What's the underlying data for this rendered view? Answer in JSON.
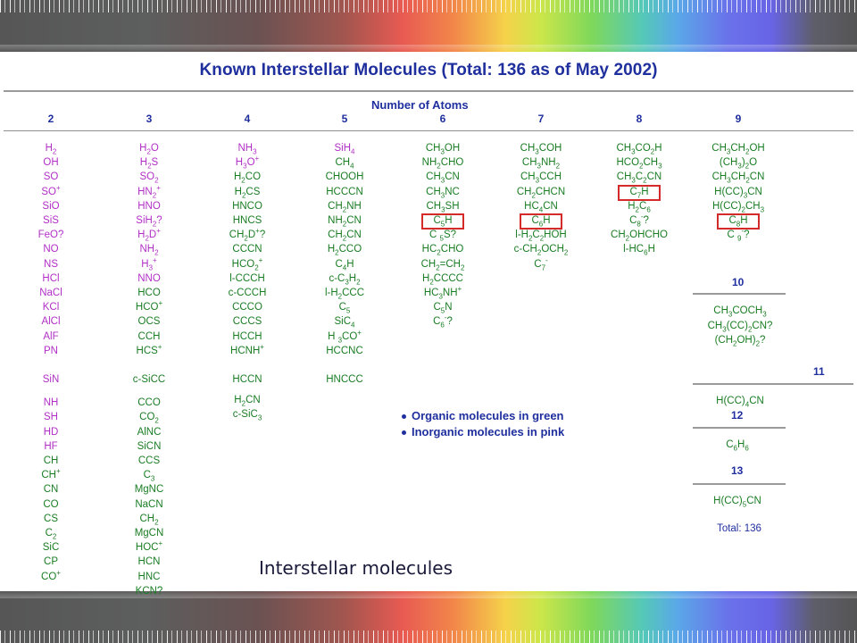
{
  "title": "Known Interstellar Molecules (Total: 136 as of May 2002)",
  "number_of_atoms_label": "Number of Atoms",
  "column_numbers": [
    "2",
    "3",
    "4",
    "5",
    "6",
    "7",
    "8",
    "9"
  ],
  "extra_headers": {
    "ten": "10",
    "eleven": "11",
    "twelve": "12",
    "thirteen": "13"
  },
  "legend": {
    "organic": "Organic molecules in green",
    "inorganic": "Inorganic molecules in pink"
  },
  "colors": {
    "organic": "#1a7d24",
    "inorganic": "#b12fc6",
    "header": "#1f2f9e",
    "highlight_box": "#d52a2a"
  },
  "total_label": "Total: 136",
  "caption": "Interstellar molecules",
  "columns": [
    {
      "atoms": "2",
      "molecules": [
        {
          "f": "H_2",
          "c": "inorg"
        },
        {
          "f": "OH",
          "c": "inorg"
        },
        {
          "f": "SO",
          "c": "inorg"
        },
        {
          "f": "SO^+",
          "c": "inorg"
        },
        {
          "f": "SiO",
          "c": "inorg"
        },
        {
          "f": "SiS",
          "c": "inorg"
        },
        {
          "f": "FeO?",
          "c": "inorg"
        },
        {
          "f": "NO",
          "c": "inorg"
        },
        {
          "f": "NS",
          "c": "inorg"
        },
        {
          "f": "HCl",
          "c": "inorg"
        },
        {
          "f": "NaCl",
          "c": "inorg"
        },
        {
          "f": "KCl",
          "c": "inorg"
        },
        {
          "f": "AlCl",
          "c": "inorg"
        },
        {
          "f": "AlF",
          "c": "inorg"
        },
        {
          "f": "PN",
          "c": "inorg"
        },
        {
          "f": "SiN",
          "c": "inorg"
        },
        {
          "f": "NH",
          "c": "inorg"
        },
        {
          "f": "SH",
          "c": "inorg"
        },
        {
          "f": "HD",
          "c": "inorg"
        },
        {
          "f": "HF",
          "c": "inorg"
        },
        {
          "f": "CH",
          "c": "org"
        },
        {
          "f": "CH^+",
          "c": "org"
        },
        {
          "f": "CN",
          "c": "org"
        },
        {
          "f": "CO",
          "c": "org"
        },
        {
          "f": "CS",
          "c": "org"
        },
        {
          "f": "C_2",
          "c": "org"
        },
        {
          "f": "SiC",
          "c": "org"
        },
        {
          "f": "CP",
          "c": "org"
        },
        {
          "f": "CO^+",
          "c": "org"
        }
      ]
    },
    {
      "atoms": "3",
      "molecules": [
        {
          "f": "H_2O",
          "c": "inorg"
        },
        {
          "f": "H_2S",
          "c": "inorg"
        },
        {
          "f": "SO_2",
          "c": "inorg"
        },
        {
          "f": "HN_2^+",
          "c": "inorg"
        },
        {
          "f": "HNO",
          "c": "inorg"
        },
        {
          "f": "SiH_2?",
          "c": "inorg"
        },
        {
          "f": "H_2D^+",
          "c": "inorg"
        },
        {
          "f": "NH_2",
          "c": "inorg"
        },
        {
          "f": "H_3^+",
          "c": "inorg"
        },
        {
          "f": "NNO",
          "c": "inorg"
        },
        {
          "f": "HCO",
          "c": "org"
        },
        {
          "f": "HCO^+",
          "c": "org"
        },
        {
          "f": "OCS",
          "c": "org"
        },
        {
          "f": "CCH",
          "c": "org"
        },
        {
          "f": "HCS^+",
          "c": "org"
        },
        {
          "f": "c-SiCC",
          "c": "org"
        },
        {
          "f": "CCO",
          "c": "org"
        },
        {
          "f": "CO_2",
          "c": "org"
        },
        {
          "f": "AlNC",
          "c": "org"
        },
        {
          "f": "SiCN",
          "c": "org"
        },
        {
          "f": "CCS",
          "c": "org"
        },
        {
          "f": "C_3",
          "c": "org"
        },
        {
          "f": "MgNC",
          "c": "org"
        },
        {
          "f": "NaCN",
          "c": "org"
        },
        {
          "f": "CH_2",
          "c": "org"
        },
        {
          "f": "MgCN",
          "c": "org"
        },
        {
          "f": "HOC^+",
          "c": "org"
        },
        {
          "f": "HCN",
          "c": "org"
        },
        {
          "f": "HNC",
          "c": "org"
        },
        {
          "f": "KCN?",
          "c": "org"
        }
      ]
    },
    {
      "atoms": "4",
      "molecules": [
        {
          "f": "NH_3",
          "c": "inorg"
        },
        {
          "f": "H_3O^+",
          "c": "inorg"
        },
        {
          "f": "H_2CO",
          "c": "org"
        },
        {
          "f": "H_2CS",
          "c": "org"
        },
        {
          "f": "HNCO",
          "c": "org"
        },
        {
          "f": "HNCS",
          "c": "org"
        },
        {
          "f": "CH_2D^+?",
          "c": "org"
        },
        {
          "f": "CCCN",
          "c": "org"
        },
        {
          "f": "HCO_2^+",
          "c": "org"
        },
        {
          "f": "l-CCCH",
          "c": "org"
        },
        {
          "f": "c-CCCH",
          "c": "org"
        },
        {
          "f": "CCCO",
          "c": "org"
        },
        {
          "f": "CCCS",
          "c": "org"
        },
        {
          "f": "HCCH",
          "c": "org"
        },
        {
          "f": "HCNH^+",
          "c": "org"
        },
        {
          "f": "HCCN",
          "c": "org"
        },
        {
          "f": "H_2CN",
          "c": "org"
        },
        {
          "f": "c-SiC_3",
          "c": "org"
        }
      ]
    },
    {
      "atoms": "5",
      "molecules": [
        {
          "f": "SiH_4",
          "c": "inorg"
        },
        {
          "f": "CH_4",
          "c": "org"
        },
        {
          "f": "CHOOH",
          "c": "org"
        },
        {
          "f": "HCCCN",
          "c": "org"
        },
        {
          "f": "CH_2NH",
          "c": "org"
        },
        {
          "f": "NH_2CN",
          "c": "org"
        },
        {
          "f": "CH_2CN",
          "c": "org"
        },
        {
          "f": "H_2CCO",
          "c": "org"
        },
        {
          "f": "C_4H",
          "c": "org"
        },
        {
          "f": "c-C_3H_2",
          "c": "org"
        },
        {
          "f": "l-H_2CCC",
          "c": "org"
        },
        {
          "f": "C_5",
          "c": "org"
        },
        {
          "f": "SiC_4",
          "c": "org"
        },
        {
          "f": "H _3CO^+",
          "c": "org"
        },
        {
          "f": "HCCNC",
          "c": "org"
        },
        {
          "f": "HNCCC",
          "c": "org"
        }
      ]
    },
    {
      "atoms": "6",
      "molecules": [
        {
          "f": "CH_3OH",
          "c": "org"
        },
        {
          "f": "NH_2CHO",
          "c": "org"
        },
        {
          "f": "CH_3CN",
          "c": "org"
        },
        {
          "f": "CH_3NC",
          "c": "org"
        },
        {
          "f": "CH_3SH",
          "c": "org"
        },
        {
          "f": "C_5H",
          "c": "org"
        },
        {
          "f": "C _5S?",
          "c": "org"
        },
        {
          "f": "HC_2CHO",
          "c": "org"
        },
        {
          "f": "CH_2=CH_2",
          "c": "org"
        },
        {
          "f": "H_2CCCC",
          "c": "org"
        },
        {
          "f": "HC_3NH^+",
          "c": "org"
        },
        {
          "f": "C_5N",
          "c": "org"
        },
        {
          "f": "C_6^-?",
          "c": "org"
        }
      ]
    },
    {
      "atoms": "7",
      "molecules": [
        {
          "f": "CH_3COH",
          "c": "org"
        },
        {
          "f": "CH_3NH_2",
          "c": "org"
        },
        {
          "f": "CH_3CCH",
          "c": "org"
        },
        {
          "f": "CH_2CHCN",
          "c": "org"
        },
        {
          "f": "HC_4CN",
          "c": "org"
        },
        {
          "f": "C_6H",
          "c": "org"
        },
        {
          "f": "l-H_2C_2HOH",
          "c": "org"
        },
        {
          "f": "c-CH_2OCH_2",
          "c": "org"
        },
        {
          "f": "C_7^-",
          "c": "org"
        }
      ]
    },
    {
      "atoms": "8",
      "molecules": [
        {
          "f": "CH_3CO_2H",
          "c": "org"
        },
        {
          "f": "HCO_2CH_3",
          "c": "org"
        },
        {
          "f": "CH_3C_2CN",
          "c": "org"
        },
        {
          "f": "C_7H",
          "c": "org"
        },
        {
          "f": "H_2C_6",
          "c": "org"
        },
        {
          "f": "C_8^-?",
          "c": "org"
        },
        {
          "f": "CH_2OHCHO",
          "c": "org"
        },
        {
          "f": "l-HC_6H",
          "c": "org"
        }
      ]
    },
    {
      "atoms": "9",
      "molecules": [
        {
          "f": "CH_3CH_2OH",
          "c": "org"
        },
        {
          "f": "(CH_3)_2O",
          "c": "org"
        },
        {
          "f": "CH_3CH_2CN",
          "c": "org"
        },
        {
          "f": "H(CC)_3CN",
          "c": "org"
        },
        {
          "f": "H(CC)_2CH_3",
          "c": "org"
        },
        {
          "f": "C_8H",
          "c": "org"
        },
        {
          "f": "C _9^-?",
          "c": "org"
        }
      ]
    }
  ],
  "group_10": [
    {
      "f": "CH_3COCH_3",
      "c": "org"
    },
    {
      "f": "CH_3(CC)_2CN?",
      "c": "org"
    },
    {
      "f": "(CH_2OH)_2?",
      "c": "org"
    }
  ],
  "group_11": [
    {
      "f": "H(CC)_4CN",
      "c": "org"
    }
  ],
  "group_12": [
    {
      "f": "C_6H_6",
      "c": "org"
    }
  ],
  "group_13": [
    {
      "f": "H(CC)_5CN",
      "c": "org"
    }
  ]
}
